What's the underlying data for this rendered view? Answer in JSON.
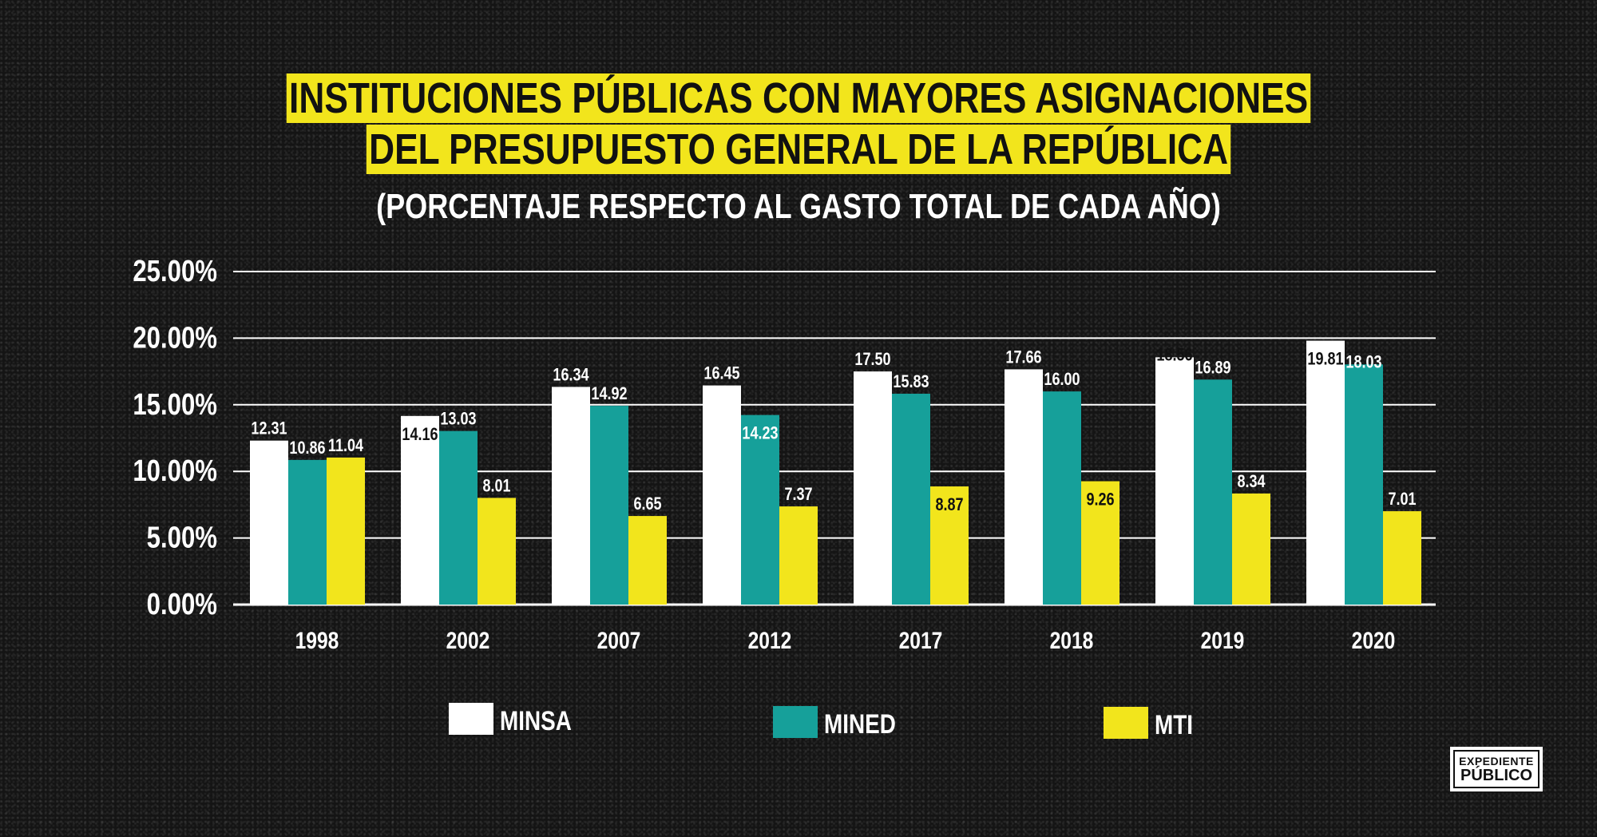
{
  "title_line1": "INSTITUCIONES PÚBLICAS CON MAYORES ASIGNACIONES",
  "title_line2": "DEL PRESUPUESTO GENERAL DE LA REPÚBLICA",
  "subtitle": "(PORCENTAJE RESPECTO AL GASTO TOTAL DE CADA AÑO)",
  "logo": {
    "line1": "EXPEDIENTE",
    "line2": "PÚBLICO"
  },
  "colors": {
    "background": "#141414",
    "highlight": "#f2e51c",
    "minsa": "#ffffff",
    "mined": "#16a09a",
    "mti": "#f2e51c"
  },
  "chart_data": {
    "type": "bar",
    "categories": [
      "1998",
      "2002",
      "2007",
      "2012",
      "2017",
      "2018",
      "2019",
      "2020"
    ],
    "series": [
      {
        "name": "MINSA",
        "color": "#ffffff",
        "values": [
          12.31,
          14.16,
          16.34,
          16.45,
          17.5,
          17.66,
          18.56,
          19.81
        ]
      },
      {
        "name": "MINED",
        "color": "#16a09a",
        "values": [
          10.86,
          13.03,
          14.92,
          14.23,
          15.83,
          16.0,
          16.89,
          18.03
        ]
      },
      {
        "name": "MTI",
        "color": "#f2e51c",
        "values": [
          11.04,
          8.01,
          6.65,
          7.37,
          8.87,
          9.26,
          8.34,
          7.01
        ]
      }
    ],
    "ylim": [
      0,
      25
    ],
    "yticks": [
      "0.00%",
      "5.00%",
      "10.00%",
      "15.00%",
      "20.00%",
      "25.00%"
    ],
    "ytick_values": [
      0,
      5,
      10,
      15,
      20,
      25
    ],
    "grid": true,
    "legend_position": "bottom"
  }
}
